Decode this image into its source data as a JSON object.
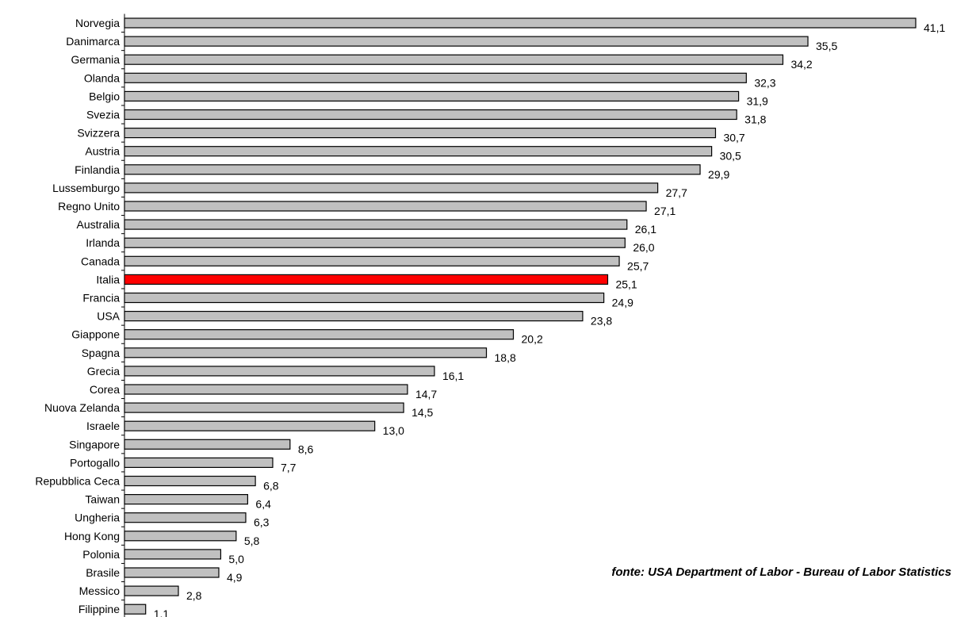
{
  "chart_data": {
    "type": "bar",
    "orientation": "horizontal",
    "categories": [
      "Norvegia",
      "Danimarca",
      "Germania",
      "Olanda",
      "Belgio",
      "Svezia",
      "Svizzera",
      "Austria",
      "Finlandia",
      "Lussemburgo",
      "Regno Unito",
      "Australia",
      "Irlanda",
      "Canada",
      "Italia",
      "Francia",
      "USA",
      "Giappone",
      "Spagna",
      "Grecia",
      "Corea",
      "Nuova Zelanda",
      "Israele",
      "Singapore",
      "Portogallo",
      "Repubblica Ceca",
      "Taiwan",
      "Ungheria",
      "Hong Kong",
      "Polonia",
      "Brasile",
      "Messico",
      "Filippine"
    ],
    "values": [
      41.1,
      35.5,
      34.2,
      32.3,
      31.9,
      31.8,
      30.7,
      30.5,
      29.9,
      27.7,
      27.1,
      26.1,
      26.0,
      25.7,
      25.1,
      24.9,
      23.8,
      20.2,
      18.8,
      16.1,
      14.7,
      14.5,
      13.0,
      8.6,
      7.7,
      6.8,
      6.4,
      6.3,
      5.8,
      5.0,
      4.9,
      2.8,
      1.1
    ],
    "value_labels": [
      "41,1",
      "35,5",
      "34,2",
      "32,3",
      "31,9",
      "31,8",
      "30,7",
      "30,5",
      "29,9",
      "27,7",
      "27,1",
      "26,1",
      "26,0",
      "25,7",
      "25,1",
      "24,9",
      "23,8",
      "20,2",
      "18,8",
      "16,1",
      "14,7",
      "14,5",
      "13,0",
      "8,6",
      "7,7",
      "6,8",
      "6,4",
      "6,3",
      "5,8",
      "5,0",
      "4,9",
      "2,8",
      "1,1"
    ],
    "highlight": "Italia",
    "colors": {
      "bar": "#c0c0c0",
      "highlight": "#ff0000",
      "outline": "#000000"
    },
    "xlim": [
      0,
      41.1
    ],
    "grid": false,
    "legend": "none",
    "annotation": "fonte: USA Department of Labor - Bureau of Labor Statistics"
  }
}
